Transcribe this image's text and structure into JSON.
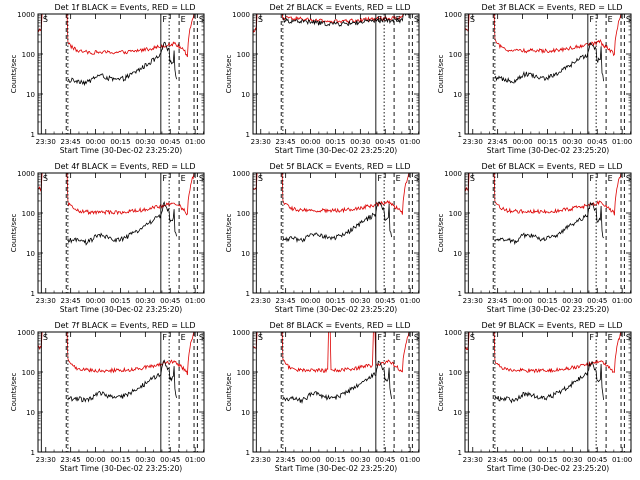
{
  "panel_defaults": {
    "ylabel": "Counts/sec",
    "xlabel": "Start Time (30-Dec-02 23:25:20)",
    "xtick_labels": [
      "23:30",
      "23:45",
      "00:00",
      "00:15",
      "00:30",
      "00:45",
      "01:00"
    ],
    "ytick_labels": [
      "1",
      "10",
      "100",
      "1000"
    ],
    "ylim": [
      1,
      1000
    ],
    "xlim_minutes": [
      0,
      100
    ],
    "markers": [
      {
        "label": "S",
        "t": 2,
        "style": "solid"
      },
      {
        "label": "",
        "t": 17,
        "style": "dashed"
      },
      {
        "label": "",
        "t": 18,
        "style": "dotted"
      },
      {
        "label": "F",
        "t": 74,
        "style": "solid"
      },
      {
        "label": "",
        "t": 79,
        "style": "dotted"
      },
      {
        "label": "E",
        "t": 85,
        "style": "dashed"
      },
      {
        "label": "",
        "t": 94,
        "style": "dashed"
      },
      {
        "label": "S",
        "t": 96,
        "style": "dashed"
      }
    ],
    "colors": {
      "events": "#000000",
      "lld": "#dd0000",
      "axis": "#000000"
    }
  },
  "chart_data": [
    {
      "type": "line",
      "title": "Det 1f BLACK = Events, RED = LLD",
      "variant": "normal",
      "scale": 1.0,
      "series": [
        {
          "name": "Events",
          "color": "#000000"
        },
        {
          "name": "LLD",
          "color": "#dd0000"
        }
      ]
    },
    {
      "type": "line",
      "title": "Det 2f BLACK = Events, RED = LLD",
      "variant": "flat",
      "scale": 1.0,
      "series": [
        {
          "name": "Events",
          "color": "#000000"
        },
        {
          "name": "LLD",
          "color": "#dd0000"
        }
      ]
    },
    {
      "type": "line",
      "title": "Det 3f BLACK = Events, RED = LLD",
      "variant": "normal",
      "scale": 1.1,
      "series": [
        {
          "name": "Events",
          "color": "#000000"
        },
        {
          "name": "LLD",
          "color": "#dd0000"
        }
      ]
    },
    {
      "type": "line",
      "title": "Det 4f BLACK = Events, RED = LLD",
      "variant": "normal",
      "scale": 0.95,
      "series": [
        {
          "name": "Events",
          "color": "#000000"
        },
        {
          "name": "LLD",
          "color": "#dd0000"
        }
      ]
    },
    {
      "type": "line",
      "title": "Det 5f BLACK = Events, RED = LLD",
      "variant": "normal",
      "scale": 1.05,
      "series": [
        {
          "name": "Events",
          "color": "#000000"
        },
        {
          "name": "LLD",
          "color": "#dd0000"
        }
      ]
    },
    {
      "type": "line",
      "title": "Det 6f BLACK = Events, RED = LLD",
      "variant": "normal",
      "scale": 1.0,
      "series": [
        {
          "name": "Events",
          "color": "#000000"
        },
        {
          "name": "LLD",
          "color": "#dd0000"
        }
      ]
    },
    {
      "type": "line",
      "title": "Det 7f BLACK = Events, RED = LLD",
      "variant": "normal",
      "scale": 1.0,
      "series": [
        {
          "name": "Events",
          "color": "#000000"
        },
        {
          "name": "LLD",
          "color": "#dd0000"
        }
      ]
    },
    {
      "type": "line",
      "title": "Det 8f BLACK = Events, RED = LLD",
      "variant": "spikes",
      "scale": 1.0,
      "series": [
        {
          "name": "Events",
          "color": "#000000"
        },
        {
          "name": "LLD",
          "color": "#dd0000"
        }
      ]
    },
    {
      "type": "line",
      "title": "Det 9f BLACK = Events, RED = LLD",
      "variant": "normal",
      "scale": 1.0,
      "series": [
        {
          "name": "Events",
          "color": "#000000"
        },
        {
          "name": "LLD",
          "color": "#dd0000"
        }
      ]
    }
  ]
}
